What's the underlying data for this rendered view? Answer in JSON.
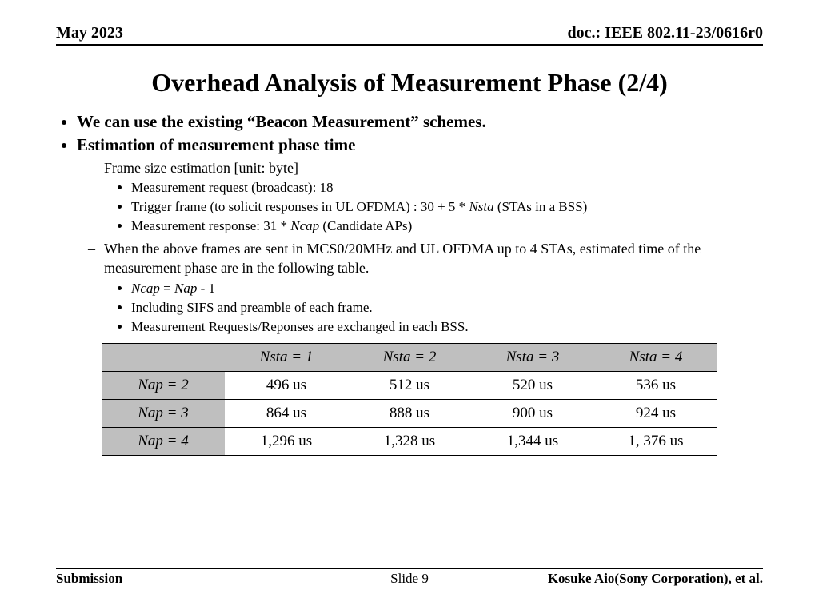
{
  "header": {
    "date": "May 2023",
    "doc": "doc.: IEEE 802.11-23/0616r0"
  },
  "title": "Overhead Analysis of Measurement Phase (2/4)",
  "bullets": {
    "b1": "We can use the existing “Beacon Measurement” schemes.",
    "b2": "Estimation of measurement phase time",
    "b2_1": "Frame size estimation [unit: byte]",
    "b2_1_1": "Measurement request (broadcast): 18",
    "b2_1_2_a": "Trigger frame (to solicit responses in UL OFDMA) : 30 + 5 * ",
    "b2_1_2_b": "Nsta",
    "b2_1_2_c": " (STAs in a BSS)",
    "b2_1_3_a": "Measurement response: 31 * ",
    "b2_1_3_b": "Ncap",
    "b2_1_3_c": " (Candidate APs)",
    "b2_2": "When the above frames are sent in MCS0/20MHz and UL OFDMA up to 4 STAs, estimated time of the measurement phase are in the following table.",
    "b2_2_1_a": "Ncap",
    "b2_2_1_b": " = ",
    "b2_2_1_c": "Nap",
    "b2_2_1_d": " - 1",
    "b2_2_2": "Including SIFS and preamble of each frame.",
    "b2_2_3": "Measurement Requests/Reponses are exchanged in each BSS."
  },
  "table": {
    "col_headers": [
      "Nsta = 1",
      "Nsta = 2",
      "Nsta = 3",
      "Nsta = 4"
    ],
    "row_headers": [
      "Nap = 2",
      "Nap = 3",
      "Nap = 4"
    ],
    "rows": [
      [
        "496 us",
        "512 us",
        "520 us",
        "536 us"
      ],
      [
        "864 us",
        "888 us",
        "900 us",
        "924 us"
      ],
      [
        "1,296 us",
        "1,328 us",
        "1,344 us",
        "1, 376 us"
      ]
    ],
    "header_bg": "#bfbfbf"
  },
  "footer": {
    "left": "Submission",
    "center": "Slide 9",
    "right": "Kosuke Aio(Sony Corporation), et al."
  }
}
